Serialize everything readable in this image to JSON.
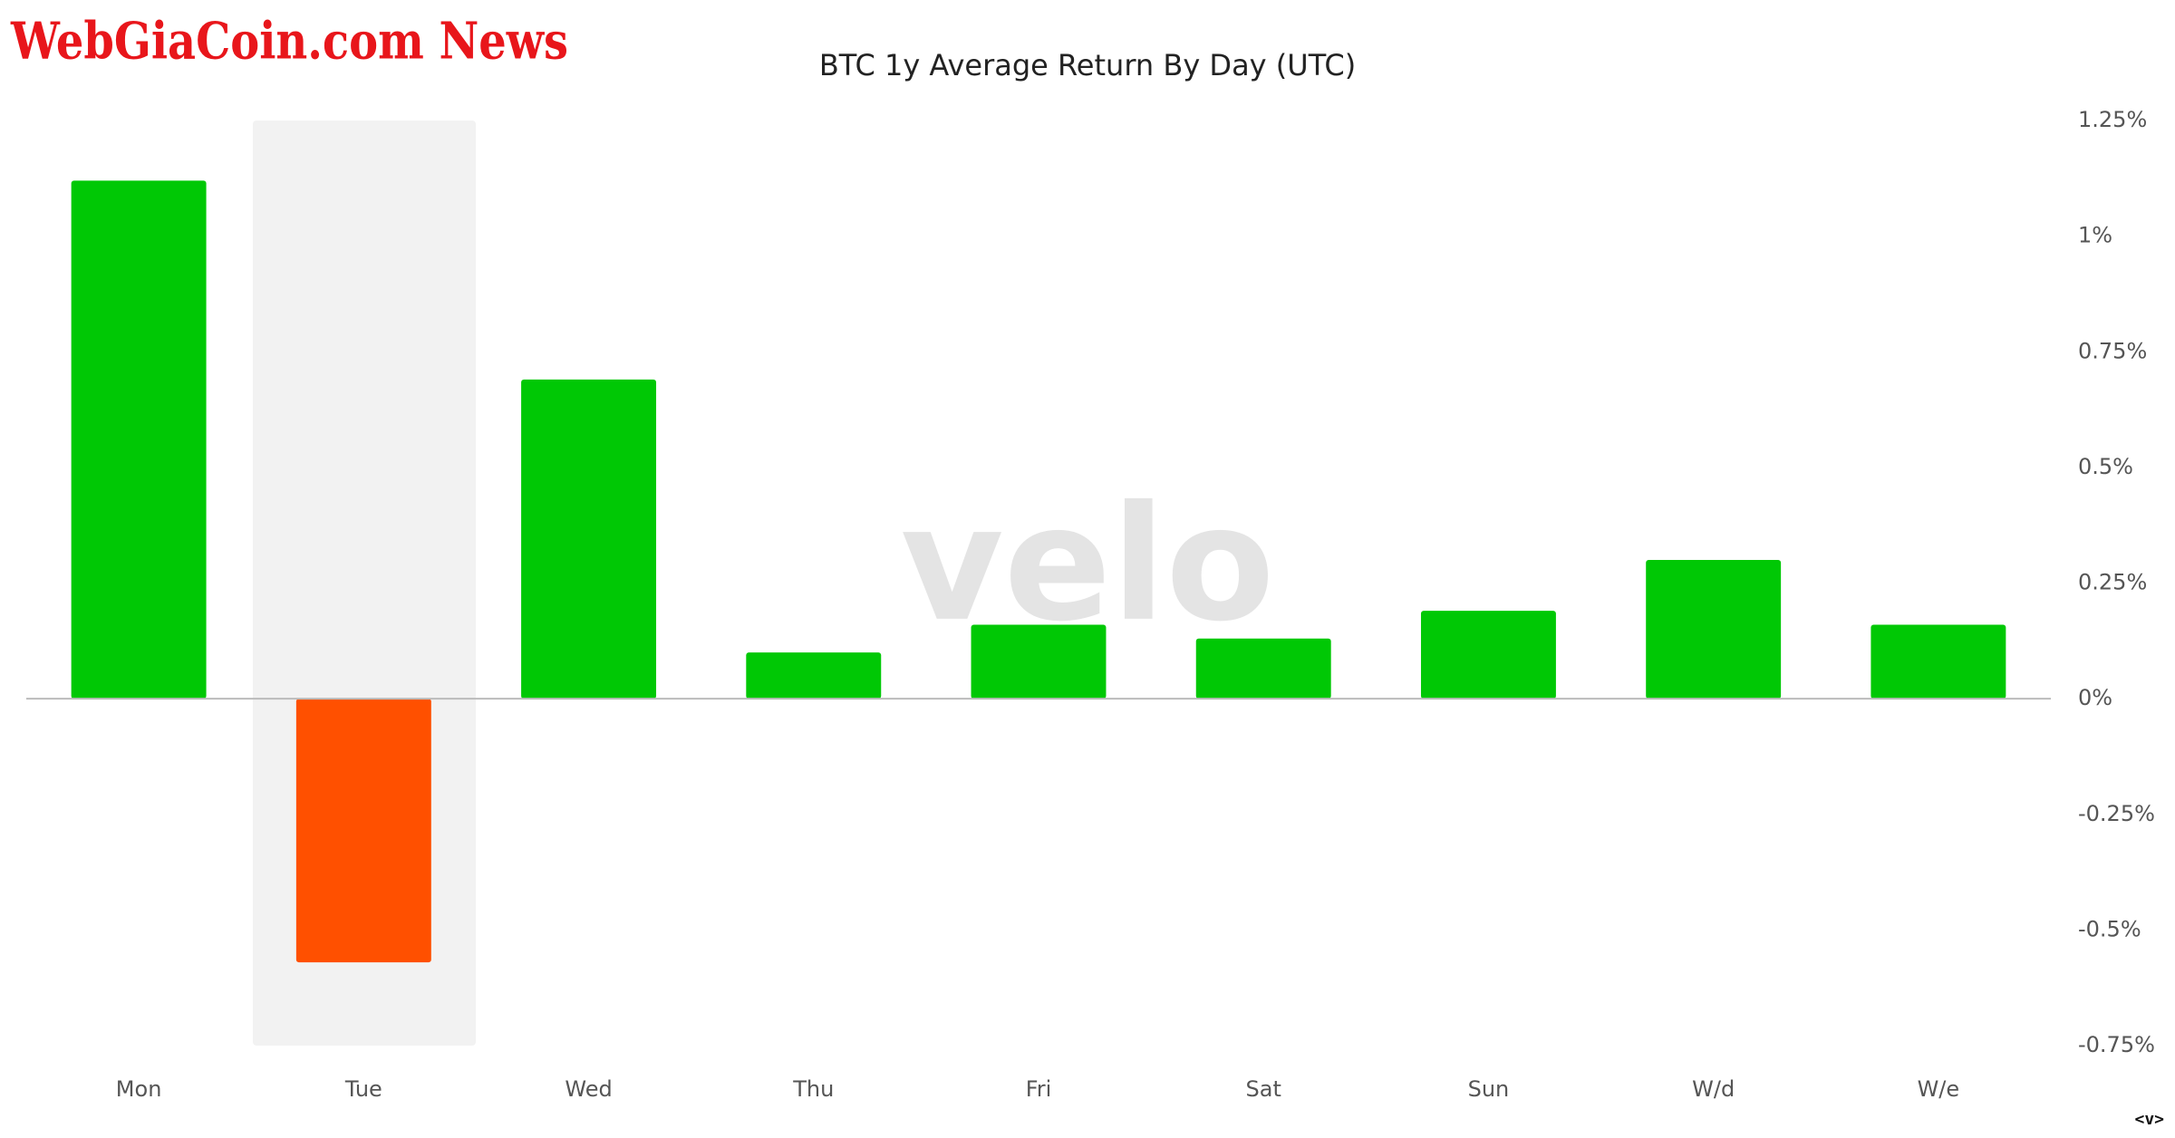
{
  "chart_data": {
    "type": "bar",
    "title": "BTC 1y Average Return By Day (UTC)",
    "categories": [
      "Mon",
      "Tue",
      "Wed",
      "Thu",
      "Fri",
      "Sat",
      "Sun",
      "W/d",
      "W/e"
    ],
    "values": [
      1.12,
      -0.57,
      0.69,
      0.1,
      0.16,
      0.13,
      0.19,
      0.3,
      0.16
    ],
    "color": "#00c805",
    "negative_color": "#ff5000",
    "ylim": [
      -0.75,
      1.25
    ],
    "yticks": [
      {
        "value": 1.25,
        "label": "1.25%"
      },
      {
        "value": 1,
        "label": "1%"
      },
      {
        "value": 0.75,
        "label": "0.75%"
      },
      {
        "value": 0.5,
        "label": "0.5%"
      },
      {
        "value": 0.25,
        "label": "0.25%"
      },
      {
        "value": 0,
        "label": "0%"
      },
      {
        "value": -0.25,
        "label": "-0.25%"
      },
      {
        "value": -0.5,
        "label": "-0.5%"
      },
      {
        "value": -0.75,
        "label": "-0.75%"
      }
    ],
    "grid": false
  },
  "overlay": {
    "brand": "WebGiaCoin.com News",
    "watermark": "velo",
    "corner": "<v>"
  }
}
